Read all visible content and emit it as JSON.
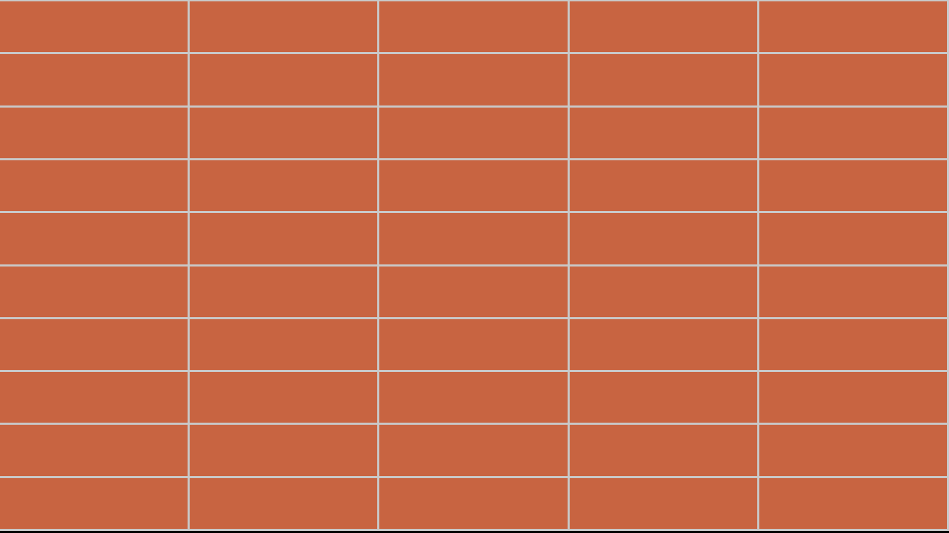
{
  "grid": {
    "rows": 10,
    "columns": 5,
    "tile_color": "#c86441",
    "line_color": "#c9c9c9"
  },
  "background_color": "#000000"
}
